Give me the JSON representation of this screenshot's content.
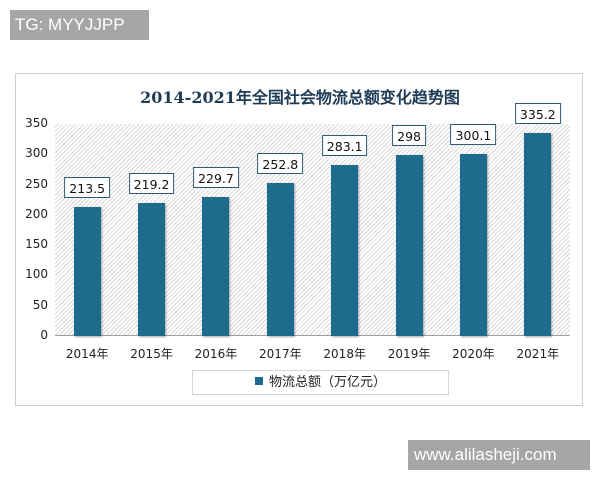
{
  "watermarks": {
    "top": "TG: MYYJJPP",
    "bottom": "www.alilasheji.com"
  },
  "chart_data": {
    "type": "bar",
    "title": "2014-2021年全国社会物流总额变化趋势图",
    "categories": [
      "2014年",
      "2015年",
      "2016年",
      "2017年",
      "2018年",
      "2019年",
      "2020年",
      "2021年"
    ],
    "series": [
      {
        "name": "物流总额（万亿元）",
        "values": [
          213.5,
          219.2,
          229.7,
          252.8,
          283.1,
          298,
          300.1,
          335.2
        ],
        "color": "#1f6b8e"
      }
    ],
    "data_labels": [
      "213.5",
      "219.2",
      "229.7",
      "252.8",
      "283.1",
      "298",
      "300.1",
      "335.2"
    ],
    "xlabel": "",
    "ylabel": "",
    "ylim": [
      0,
      350
    ],
    "yticks": [
      "0",
      "50",
      "100",
      "150",
      "200",
      "250",
      "300",
      "350"
    ],
    "grid": false,
    "legend_position": "bottom"
  }
}
